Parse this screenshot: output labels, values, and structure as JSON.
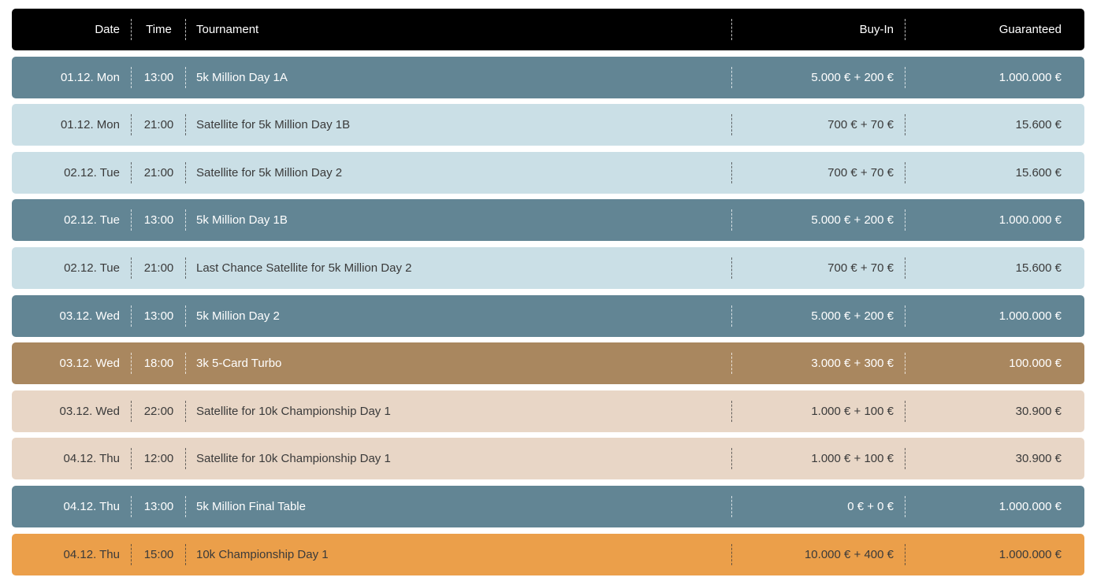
{
  "header": {
    "date": "Date",
    "time": "Time",
    "tournament": "Tournament",
    "buyin": "Buy-In",
    "guaranteed": "Guaranteed"
  },
  "colors": {
    "header": "#000000",
    "main_event": "#628594",
    "satellite": "#cadfe6",
    "turbo": "#a9875f",
    "championship_satellite": "#e8d6c6",
    "championship": "#eb9f4a"
  },
  "rows": [
    {
      "date": "01.12. Mon",
      "time": "13:00",
      "tournament": "5k Million Day 1A",
      "buyin": "5.000 € + 200 €",
      "guaranteed": "1.000.000 €",
      "style": "main"
    },
    {
      "date": "01.12. Mon",
      "time": "21:00",
      "tournament": "Satellite for 5k Million Day 1B",
      "buyin": "700 € + 70 €",
      "guaranteed": "15.600 €",
      "style": "sat"
    },
    {
      "date": "02.12. Tue",
      "time": "21:00",
      "tournament": "Satellite for 5k Million Day 2",
      "buyin": "700 € + 70 €",
      "guaranteed": "15.600 €",
      "style": "sat"
    },
    {
      "date": "02.12. Tue",
      "time": "13:00",
      "tournament": "5k Million Day 1B",
      "buyin": "5.000 € + 200 €",
      "guaranteed": "1.000.000 €",
      "style": "main"
    },
    {
      "date": "02.12. Tue",
      "time": "21:00",
      "tournament": "Last Chance Satellite for 5k Million Day 2",
      "buyin": "700 € + 70 €",
      "guaranteed": "15.600 €",
      "style": "sat"
    },
    {
      "date": "03.12. Wed",
      "time": "13:00",
      "tournament": "5k Million Day 2",
      "buyin": "5.000 € + 200 €",
      "guaranteed": "1.000.000 €",
      "style": "main"
    },
    {
      "date": "03.12. Wed",
      "time": "18:00",
      "tournament": "3k 5-Card Turbo",
      "buyin": "3.000 € + 300 €",
      "guaranteed": "100.000 €",
      "style": "turbo"
    },
    {
      "date": "03.12. Wed",
      "time": "22:00",
      "tournament": "Satellite for 10k Championship Day 1",
      "buyin": "1.000 € + 100 €",
      "guaranteed": "30.900 €",
      "style": "champsat"
    },
    {
      "date": "04.12. Thu",
      "time": "12:00",
      "tournament": "Satellite for 10k Championship Day 1",
      "buyin": "1.000 € + 100 €",
      "guaranteed": "30.900 €",
      "style": "champsat"
    },
    {
      "date": "04.12. Thu",
      "time": "13:00",
      "tournament": "5k Million Final Table",
      "buyin": "0 € + 0 €",
      "guaranteed": "1.000.000 €",
      "style": "main"
    },
    {
      "date": "04.12. Thu",
      "time": "15:00",
      "tournament": "10k Championship Day 1",
      "buyin": "10.000 € + 400 €",
      "guaranteed": "1.000.000 €",
      "style": "champ"
    }
  ]
}
